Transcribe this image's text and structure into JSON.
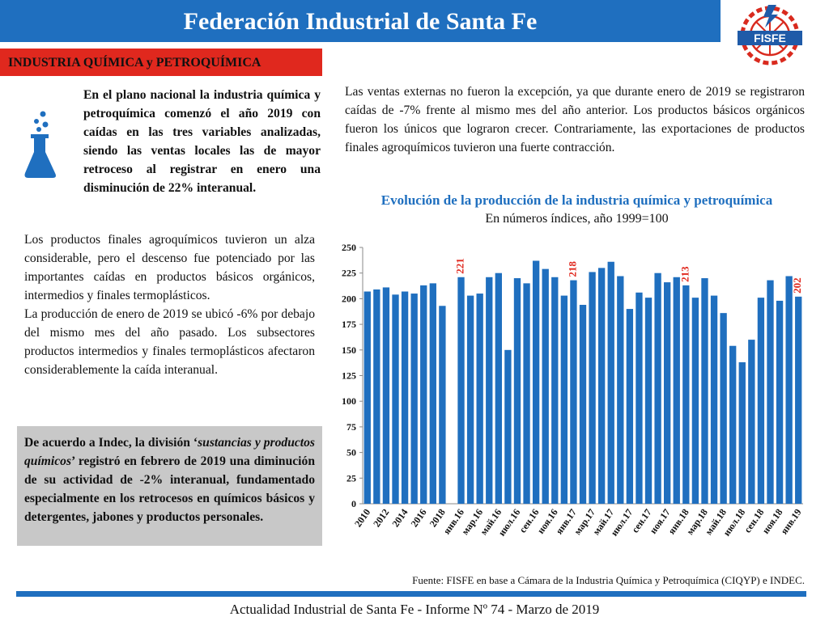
{
  "header": {
    "title": "Federación Industrial de Santa Fe",
    "logo_text": "FISFE"
  },
  "section": {
    "label": "INDUSTRIA QUÍMICA y PETROQUÍMICA"
  },
  "text": {
    "p1": "En el plano nacional la industria química y petroquímica comenzó el año 2019 con caídas en las tres variables analizadas, siendo las ventas locales las de mayor retroceso al registrar en enero una disminución de 22% interanual.",
    "p2a": "Los productos finales agroquímicos tuvieron un alza considerable, pero el descenso fue potenciado por las importantes caídas en productos básicos orgánicos, intermedios y finales termoplásticos.",
    "p2b": "La producción de enero de 2019 se ubicó -6% por debajo del mismo mes del año pasado. Los subsectores productos intermedios y finales termoplásticos afectaron considerablemente la caída interanual.",
    "p3": "Las ventas externas no fueron la excepción, ya que durante enero de 2019 se registraron caídas de -7% frente al mismo mes del año anterior. Los productos básicos orgánicos fueron los únicos que lograron crecer. Contrariamente, las exportaciones de productos finales agroquímicos tuvieron una fuerte contracción.",
    "note_pre": "De acuerdo a Indec, la división ‘",
    "note_em": "sustancias y productos químicos",
    "note_post": "’ registró en febrero de 2019 una diminución de su actividad de -2% interanual, fundamentado especialmente en los retrocesos en químicos básicos y detergentes, jabones y productos personales."
  },
  "chart_data": {
    "type": "bar",
    "title": "Evolución de la producción de la industria química y petroquímica",
    "subtitle": "En números índices, año 1999=100",
    "ylim": [
      0,
      250
    ],
    "yticks": [
      0,
      25,
      50,
      75,
      100,
      125,
      150,
      175,
      200,
      225,
      250
    ],
    "grid": false,
    "bar_color": "#1f6fbf",
    "label_color": "#e0281e",
    "categories": [
      "2010",
      "2011",
      "2012",
      "2013",
      "2014",
      "2015",
      "2016",
      "2017",
      "2018",
      "",
      "янв.16",
      "февр.16",
      "мар.16",
      "апр.16",
      "май.16",
      "июн.16",
      "июл.16",
      "авг.16",
      "сен.16",
      "окт.16",
      "ноя.16",
      "дек.16",
      "янв.17",
      "февр.17",
      "мар.17",
      "апр.17",
      "май.17",
      "июн.17",
      "июл.17",
      "авг.17",
      "сен.17",
      "окт.17",
      "ноя.17",
      "дек.17",
      "янв.18",
      "февр.18",
      "мар.18",
      "апр.18",
      "май.18",
      "июн.18",
      "июл.18",
      "авг.18",
      "сен.18",
      "окт.18",
      "ноя.18",
      "дек.18",
      "янв.19"
    ],
    "visible_tick_labels": [
      "2010",
      "2012",
      "2014",
      "2016",
      "2018",
      "янв.16",
      "мар.16",
      "май.16",
      "июл.16",
      "сен.16",
      "ноя.16",
      "янв.17",
      "мар.17",
      "май.17",
      "июл.17",
      "сен.17",
      "ноя.17",
      "янв.18",
      "мар.18",
      "май.18",
      "июл.18",
      "сен.18",
      "ноя.18",
      "янв.19"
    ],
    "values": [
      207,
      209,
      211,
      204,
      207,
      205,
      213,
      215,
      193,
      null,
      221,
      203,
      205,
      221,
      225,
      150,
      220,
      215,
      237,
      229,
      221,
      203,
      218,
      194,
      226,
      230,
      236,
      222,
      190,
      206,
      201,
      225,
      216,
      221,
      213,
      201,
      220,
      203,
      186,
      154,
      138,
      160,
      201,
      218,
      198,
      222,
      202
    ],
    "data_labels": [
      {
        "category": "янв.16",
        "text": "221"
      },
      {
        "category": "янв.17",
        "text": "218"
      },
      {
        "category": "янв.18",
        "text": "213"
      },
      {
        "category": "янв.19",
        "text": "202"
      }
    ]
  },
  "source": "Fuente: FISFE en base a Cámara de la Industria Química y Petroquímica (CIQYP) e INDEC.",
  "footer": "Actualidad Industrial de Santa Fe - Informe Nº 74 - Marzo de 2019"
}
